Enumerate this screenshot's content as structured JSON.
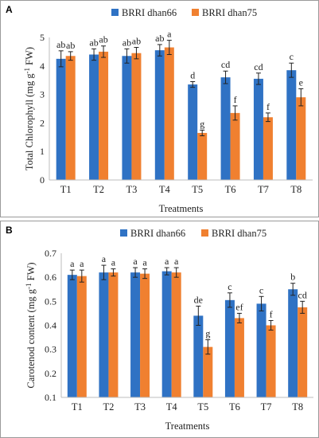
{
  "chart_data": [
    {
      "type": "bar",
      "panel_label": "A",
      "categories": [
        "T1",
        "T2",
        "T3",
        "T4",
        "T5",
        "T6",
        "T7",
        "T8"
      ],
      "xlabel": "Treatments",
      "ylabel": "Total Chlorophyll (mg g",
      "ylabel_sup": "-1",
      "ylabel_end": " FW)",
      "ylim": [
        0,
        5
      ],
      "yticks": [
        "0",
        "1",
        "2",
        "3",
        "4",
        "5"
      ],
      "grid": false,
      "legend_position": "top",
      "series": [
        {
          "name": "BRRI dhan66",
          "color": "#2f72c4",
          "values": [
            4.25,
            4.4,
            4.35,
            4.55,
            3.35,
            3.6,
            3.55,
            3.85
          ],
          "errors": [
            0.28,
            0.2,
            0.25,
            0.2,
            0.1,
            0.22,
            0.2,
            0.25
          ],
          "letters": [
            "ab",
            "ab",
            "ab",
            "ab",
            "d",
            "cd",
            "cd",
            "c"
          ]
        },
        {
          "name": "BRRI dhan75",
          "color": "#f08030",
          "values": [
            4.35,
            4.5,
            4.45,
            4.65,
            1.65,
            2.35,
            2.2,
            2.9
          ],
          "errors": [
            0.15,
            0.2,
            0.2,
            0.25,
            0.1,
            0.25,
            0.15,
            0.3
          ],
          "letters": [
            "ab",
            "ab",
            "ab",
            "a",
            "g",
            "f",
            "f",
            "e"
          ]
        }
      ]
    },
    {
      "type": "bar",
      "panel_label": "B",
      "categories": [
        "T1",
        "T2",
        "T3",
        "T4",
        "T5",
        "T6",
        "T7",
        "T8"
      ],
      "xlabel": "Treatments",
      "ylabel": "Carotenod content (mg g",
      "ylabel_sup": "-1",
      "ylabel_end": " FW)",
      "ylim": [
        0.1,
        0.7
      ],
      "yticks": [
        "0.1",
        "0.2",
        "0.3",
        "0.4",
        "0.5",
        "0.6",
        "0.7"
      ],
      "grid": false,
      "legend_position": "top",
      "series": [
        {
          "name": "BRRI dhan66",
          "color": "#2f72c4",
          "values": [
            0.61,
            0.62,
            0.62,
            0.625,
            0.44,
            0.505,
            0.49,
            0.55
          ],
          "errors": [
            0.02,
            0.03,
            0.02,
            0.015,
            0.04,
            0.03,
            0.03,
            0.025
          ],
          "letters": [
            "a",
            "a",
            "a",
            "a",
            "de",
            "c",
            "c",
            "b"
          ]
        },
        {
          "name": "BRRI dhan75",
          "color": "#f08030",
          "values": [
            0.605,
            0.62,
            0.615,
            0.62,
            0.31,
            0.43,
            0.4,
            0.475
          ],
          "errors": [
            0.025,
            0.015,
            0.02,
            0.02,
            0.03,
            0.02,
            0.02,
            0.025
          ],
          "letters": [
            "a",
            "a",
            "a",
            "a",
            "g",
            "ef",
            "f",
            "cd"
          ]
        }
      ]
    }
  ]
}
